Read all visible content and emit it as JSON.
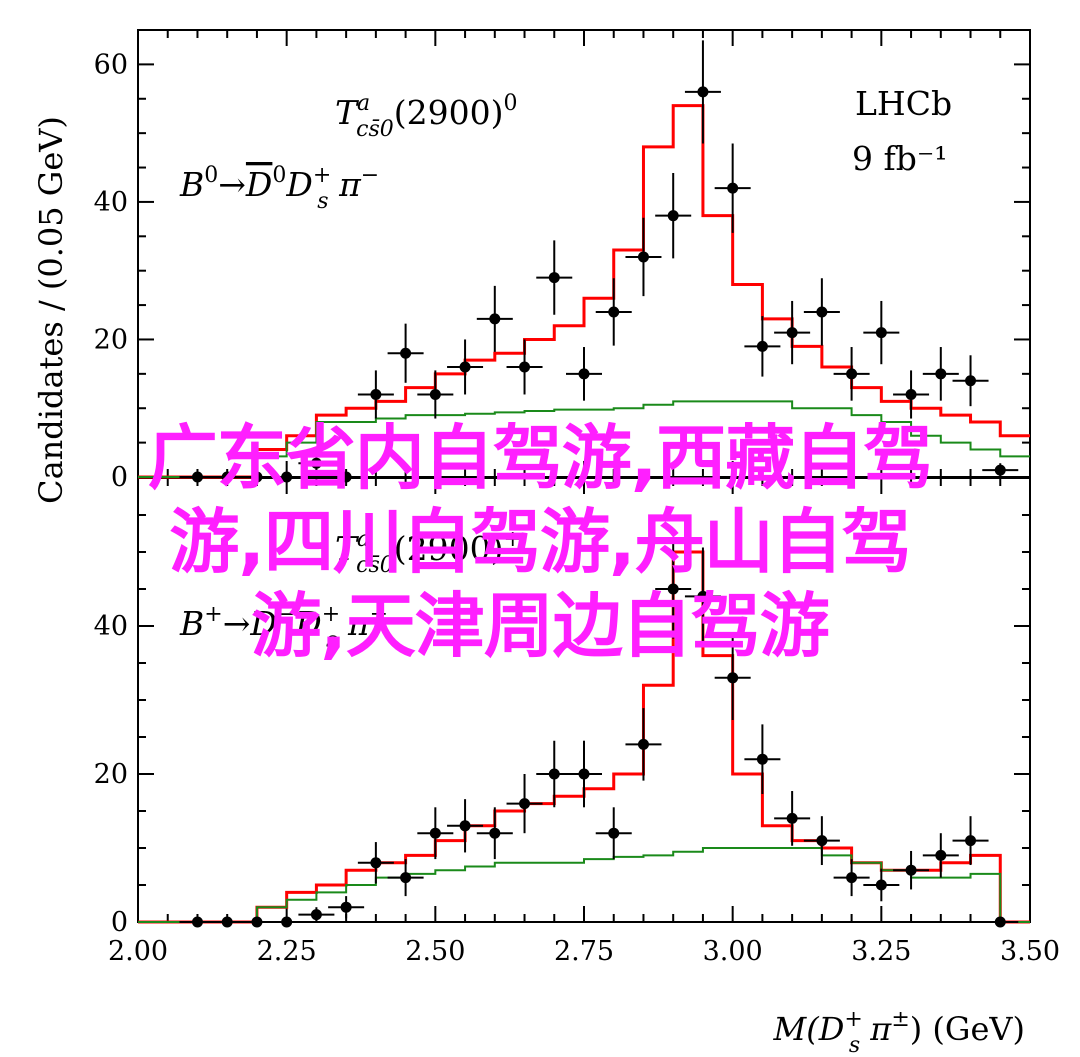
{
  "overlay_lines": [
    "广东省内自驾游,西藏自驾",
    "游,四川自驾游,舟山自驾",
    "游,天津周边自驾游"
  ],
  "colors": {
    "fit_total": "#ff0000",
    "fit_component": "#1a8a1a",
    "data": "#000000",
    "overlay": "#ff1fff"
  },
  "chart_data": [
    {
      "type": "line",
      "panel": "top",
      "annotations": {
        "lhcb": "LHCb",
        "lumi": "9 fb⁻¹"
      },
      "ylabel": "Candidates / (0.05 GeV)",
      "xlim": [
        2.0,
        3.5
      ],
      "ylim": [
        0,
        65
      ],
      "yticks": [
        0,
        20,
        40,
        60
      ],
      "bin_edges": [
        2.075,
        2.125,
        2.175,
        2.225,
        2.275,
        2.325,
        2.375,
        2.425,
        2.475,
        2.525,
        2.575,
        2.625,
        2.675,
        2.725,
        2.775,
        2.825,
        2.875,
        2.925,
        2.975,
        3.025,
        3.075,
        3.125,
        3.175,
        3.225,
        3.275,
        3.325,
        3.375,
        3.425,
        3.475
      ],
      "series": [
        {
          "kind": "data",
          "x": [
            2.1,
            2.15,
            2.2,
            2.25,
            2.3,
            2.35,
            2.4,
            2.45,
            2.5,
            2.55,
            2.6,
            2.65,
            2.7,
            2.75,
            2.8,
            2.85,
            2.9,
            2.95,
            3.0,
            3.05,
            3.1,
            3.15,
            3.2,
            3.25,
            3.3,
            3.35,
            3.4,
            3.45
          ],
          "y": [
            0,
            0,
            0,
            0,
            2,
            0,
            12,
            18,
            12,
            16,
            23,
            16,
            29,
            15,
            24,
            32,
            38,
            56,
            42,
            19,
            21,
            24,
            15,
            21,
            12,
            15,
            14,
            1
          ],
          "yerr": [
            0,
            0,
            0,
            0,
            1.5,
            0,
            3.5,
            4.3,
            3.5,
            4,
            4.8,
            4,
            5.4,
            3.9,
            4.9,
            5.7,
            6.2,
            7.5,
            6.5,
            4.4,
            4.6,
            4.9,
            3.9,
            4.6,
            3.5,
            3.9,
            3.7,
            1
          ]
        },
        {
          "kind": "fit_total",
          "values": [
            0,
            0,
            0,
            0,
            4,
            6,
            9,
            10,
            11,
            13,
            15,
            17,
            18,
            20,
            22,
            26,
            33,
            48,
            54,
            38,
            28,
            23,
            19,
            16,
            13,
            11,
            10,
            9,
            8,
            6
          ]
        },
        {
          "kind": "fit_component",
          "values": [
            0,
            0,
            0,
            0,
            3,
            5,
            8,
            8,
            8.5,
            9,
            9,
            9.2,
            9.4,
            9.6,
            9.8,
            9.8,
            10,
            10.5,
            11,
            11,
            11,
            11,
            10,
            10,
            9,
            8,
            6,
            5,
            4,
            3
          ]
        }
      ]
    },
    {
      "type": "line",
      "panel": "bottom",
      "annotations": {},
      "xlabel": "M(Ds⁺ π±) (GeV)",
      "xlim": [
        2.0,
        3.5
      ],
      "ylim": [
        0,
        60
      ],
      "yticks": [
        0,
        20,
        40
      ],
      "xticks": [
        "2.00",
        "2.25",
        "2.50",
        "2.75",
        "3.00",
        "3.25",
        "3.50"
      ],
      "series": [
        {
          "kind": "data",
          "x": [
            2.1,
            2.15,
            2.2,
            2.25,
            2.3,
            2.35,
            2.4,
            2.45,
            2.5,
            2.55,
            2.6,
            2.65,
            2.7,
            2.75,
            2.8,
            2.85,
            2.9,
            2.95,
            3.0,
            3.05,
            3.1,
            3.15,
            3.2,
            3.25,
            3.3,
            3.35,
            3.4,
            3.45
          ],
          "y": [
            0,
            0,
            0,
            0,
            1,
            2,
            8,
            6,
            12,
            13,
            12,
            16,
            20,
            20,
            12,
            24,
            45,
            44,
            33,
            22,
            14,
            11,
            6,
            5,
            7,
            9,
            11,
            0
          ],
          "yerr": [
            0,
            0,
            0,
            0,
            1,
            1.5,
            2.8,
            2.5,
            3.5,
            3.6,
            3.5,
            4,
            4.5,
            4.5,
            3.5,
            4.9,
            6.7,
            6.6,
            5.7,
            4.7,
            3.7,
            3.3,
            2.5,
            2.2,
            2.6,
            3,
            3.3,
            0
          ]
        },
        {
          "kind": "fit_total",
          "values": [
            0,
            0,
            0,
            0,
            2,
            4,
            5,
            7,
            8,
            9,
            11,
            13,
            15,
            16,
            17,
            18,
            20,
            32,
            50,
            36,
            20,
            13,
            11,
            10,
            8,
            7,
            7,
            8,
            9,
            0
          ]
        },
        {
          "kind": "fit_component",
          "values": [
            0,
            0,
            0,
            0,
            2,
            3,
            4,
            5,
            6,
            6.5,
            7,
            7.5,
            8,
            8,
            8,
            8.5,
            8.8,
            9,
            9.5,
            10,
            10,
            10,
            10,
            9,
            8,
            7,
            6,
            6,
            6.5,
            0
          ]
        }
      ]
    }
  ]
}
